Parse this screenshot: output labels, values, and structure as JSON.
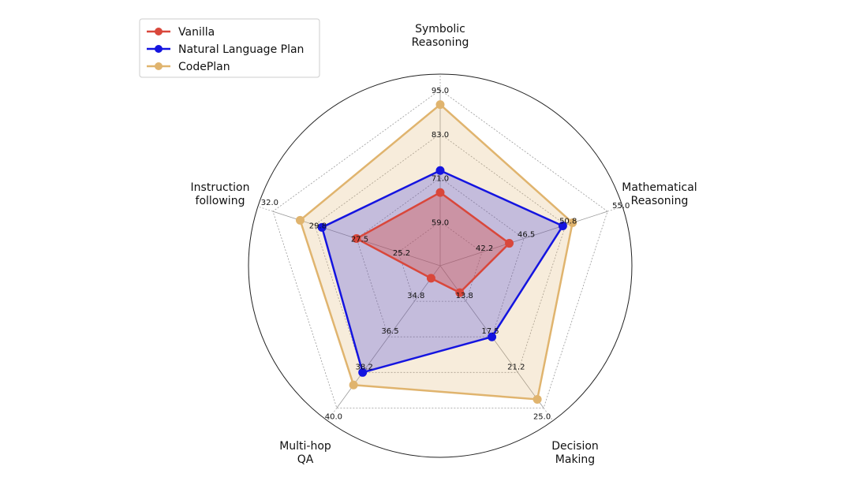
{
  "chart_data": {
    "type": "radar",
    "axes": [
      {
        "name": "symbolic",
        "label": [
          "Symbolic",
          "Reasoning"
        ],
        "ticks": [
          "59.0",
          "71.0",
          "83.0",
          "95.0"
        ]
      },
      {
        "name": "mathematical",
        "label": [
          "Mathematical",
          "Reasoning"
        ],
        "ticks": [
          "42.2",
          "46.5",
          "50.8",
          "55.0"
        ]
      },
      {
        "name": "decision",
        "label": [
          "Decision",
          "Making"
        ],
        "ticks": [
          "13.8",
          "17.5",
          "21.2",
          "25.0"
        ]
      },
      {
        "name": "multihop",
        "label": [
          "Multi-hop",
          "QA"
        ],
        "ticks": [
          "34.8",
          "36.5",
          "38.2",
          "40.0"
        ]
      },
      {
        "name": "instruction",
        "label": [
          "Instruction",
          "following"
        ],
        "ticks": [
          "25.2",
          "27.5",
          "29.8",
          "32.0"
        ]
      }
    ],
    "levels": [
      0.25,
      0.5,
      0.75,
      1.0
    ],
    "series": [
      {
        "name": "Vanilla",
        "color": "#d9473b",
        "values": [
          67.0,
          45.0,
          12.9,
          33.7,
          27.5
        ]
      },
      {
        "name": "Natural Language Plan",
        "color": "#1414e0",
        "values": [
          73.0,
          50.5,
          17.5,
          38.2,
          29.4
        ]
      },
      {
        "name": "CodePlan",
        "color": "#e0b46e",
        "values": [
          91.0,
          51.5,
          24.0,
          38.8,
          30.6
        ]
      }
    ],
    "legend_position": "top-left",
    "grid": true
  }
}
